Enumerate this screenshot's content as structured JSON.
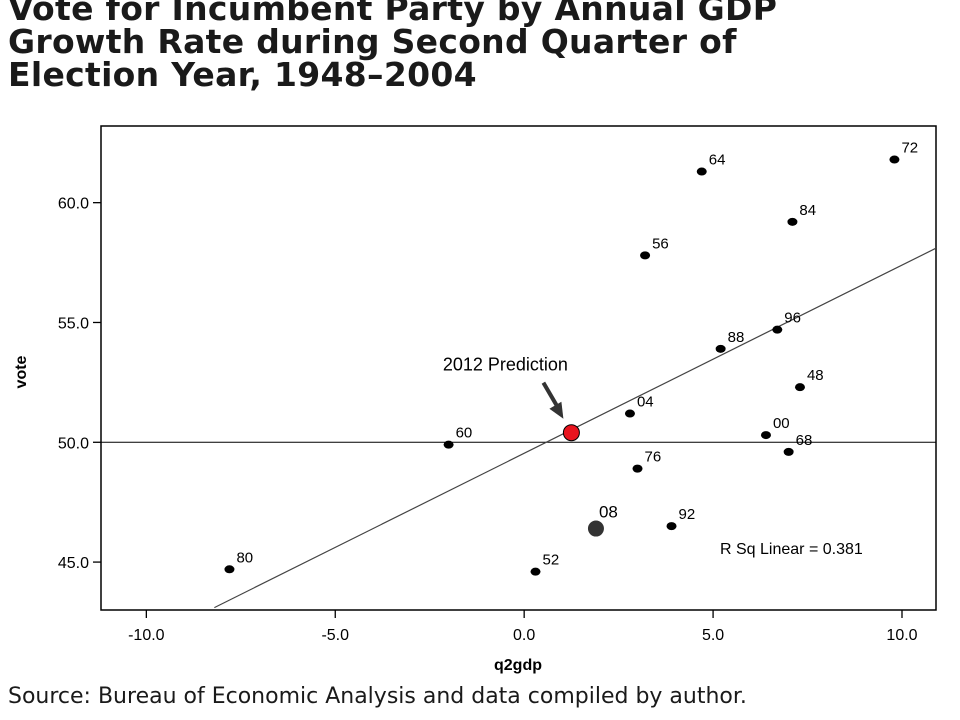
{
  "title_lines": [
    "Vote for Incumbent Party by Annual GDP",
    "Growth Rate during Second Quarter of",
    "Election Year, 1948–2004"
  ],
  "source": "Source: Bureau of Economic Analysis and data compiled by author.",
  "chart_data": {
    "type": "scatter",
    "xlabel": "q2gdp",
    "ylabel": "vote",
    "xlim": [
      -11.2,
      10.9
    ],
    "ylim": [
      43.0,
      63.2
    ],
    "x_ticks": [
      -10.0,
      -5.0,
      0.0,
      5.0,
      10.0
    ],
    "x_tick_labels": [
      "-10.0",
      "-5.0",
      "0.0",
      "5.0",
      "10.0"
    ],
    "y_ticks": [
      45.0,
      50.0,
      55.0,
      60.0
    ],
    "y_tick_labels": [
      "45.0",
      "50.0",
      "55.0",
      "60.0"
    ],
    "reference_line_y": 50.0,
    "fit_line": {
      "x": [
        -8.2,
        10.9
      ],
      "y": [
        43.1,
        58.1
      ]
    },
    "r_squared_label": "R Sq Linear = 0.381",
    "points": [
      {
        "label": "80",
        "x": -7.8,
        "y": 44.7
      },
      {
        "label": "60",
        "x": -2.0,
        "y": 49.9
      },
      {
        "label": "52",
        "x": 0.3,
        "y": 44.6
      },
      {
        "label": "04",
        "x": 2.8,
        "y": 51.2
      },
      {
        "label": "76",
        "x": 3.0,
        "y": 48.9
      },
      {
        "label": "56",
        "x": 3.2,
        "y": 57.8
      },
      {
        "label": "92",
        "x": 3.9,
        "y": 46.5
      },
      {
        "label": "64",
        "x": 4.7,
        "y": 61.3
      },
      {
        "label": "88",
        "x": 5.2,
        "y": 53.9
      },
      {
        "label": "00",
        "x": 6.4,
        "y": 50.3
      },
      {
        "label": "96",
        "x": 6.7,
        "y": 54.7
      },
      {
        "label": "68",
        "x": 7.0,
        "y": 49.6
      },
      {
        "label": "84",
        "x": 7.1,
        "y": 59.2
      },
      {
        "label": "48",
        "x": 7.3,
        "y": 52.3
      },
      {
        "label": "72",
        "x": 9.8,
        "y": 61.8
      }
    ],
    "highlight_points": [
      {
        "label": "08",
        "x": 1.9,
        "y": 46.4,
        "color": "#333333"
      },
      {
        "label": "2012 Prediction",
        "x": 1.25,
        "y": 50.4,
        "color": "#e8141e"
      }
    ],
    "colors": {
      "points": "#000000",
      "axes": "#000000",
      "prediction": "#e8141e",
      "highlight_08": "#333333"
    }
  }
}
